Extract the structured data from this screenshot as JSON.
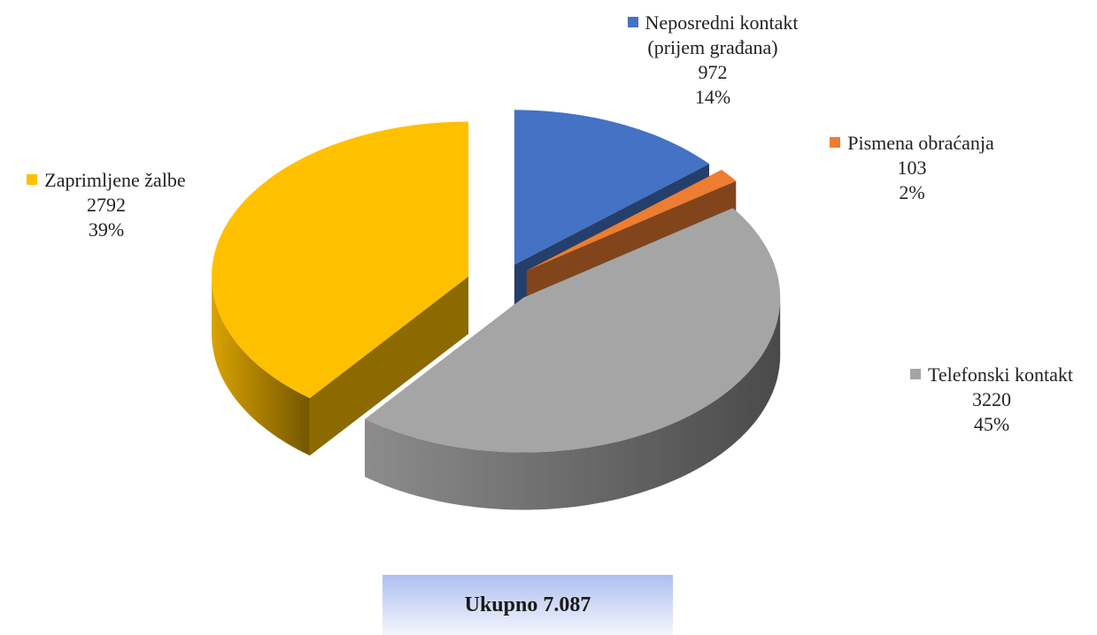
{
  "chart_data": {
    "type": "pie3d",
    "categories": [
      "Neposredni kontakt (prijem građana)",
      "Pismena obraćanja",
      "Telefonski kontakt",
      "Zaprimljene žalbe"
    ],
    "values": [
      972,
      103,
      3220,
      2792
    ],
    "percent_labels": [
      "14%",
      "2%",
      "45%",
      "39%"
    ],
    "colors": [
      "#4472c4",
      "#ed7d31",
      "#a5a5a5",
      "#ffc000"
    ],
    "total_label": "Ukupno 7.087"
  }
}
